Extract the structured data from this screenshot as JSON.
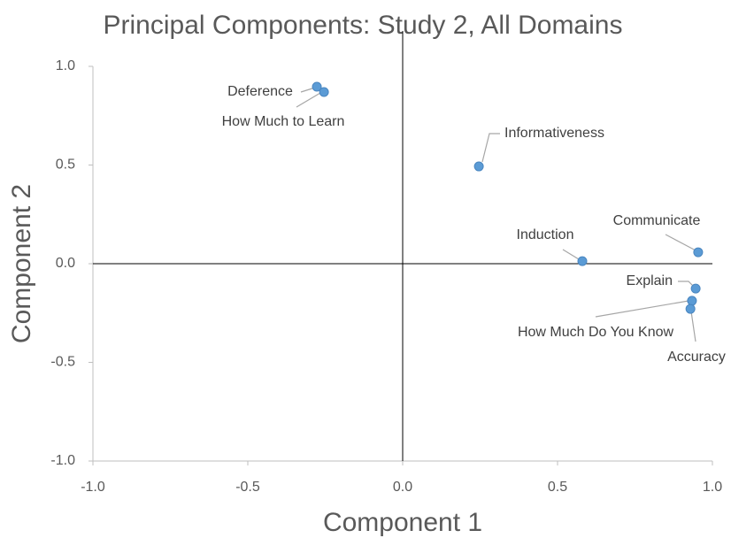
{
  "chart_data": {
    "type": "scatter",
    "title": "Principal Components: Study 2, All Domains",
    "xlabel": "Component 1",
    "ylabel": "Component 2",
    "labels": [
      "Deference",
      "How Much to Learn",
      "Informativeness",
      "Induction",
      "Communicate",
      "Explain",
      "How Much Do You Know",
      "Accuracy"
    ],
    "x": [
      -0.277,
      -0.254,
      0.246,
      0.58,
      0.954,
      0.946,
      0.934,
      0.929
    ],
    "y": [
      0.897,
      0.87,
      0.493,
      0.013,
      0.058,
      -0.126,
      -0.188,
      -0.229
    ],
    "color": "#5b9bd5",
    "xlim": [
      -1,
      1
    ],
    "ylim": [
      -1,
      1
    ],
    "xticks": [
      {
        "value": -1,
        "label": "-1.0"
      },
      -0.5,
      {
        "value": 0,
        "label": "0.0"
      },
      0.5,
      {
        "value": 1,
        "label": "1.0"
      }
    ],
    "yticks": [
      {
        "value": -1,
        "label": "-1.0"
      },
      -0.5,
      {
        "value": 0,
        "label": "0.0"
      },
      0.5,
      {
        "value": 1,
        "label": "1.0"
      }
    ]
  }
}
